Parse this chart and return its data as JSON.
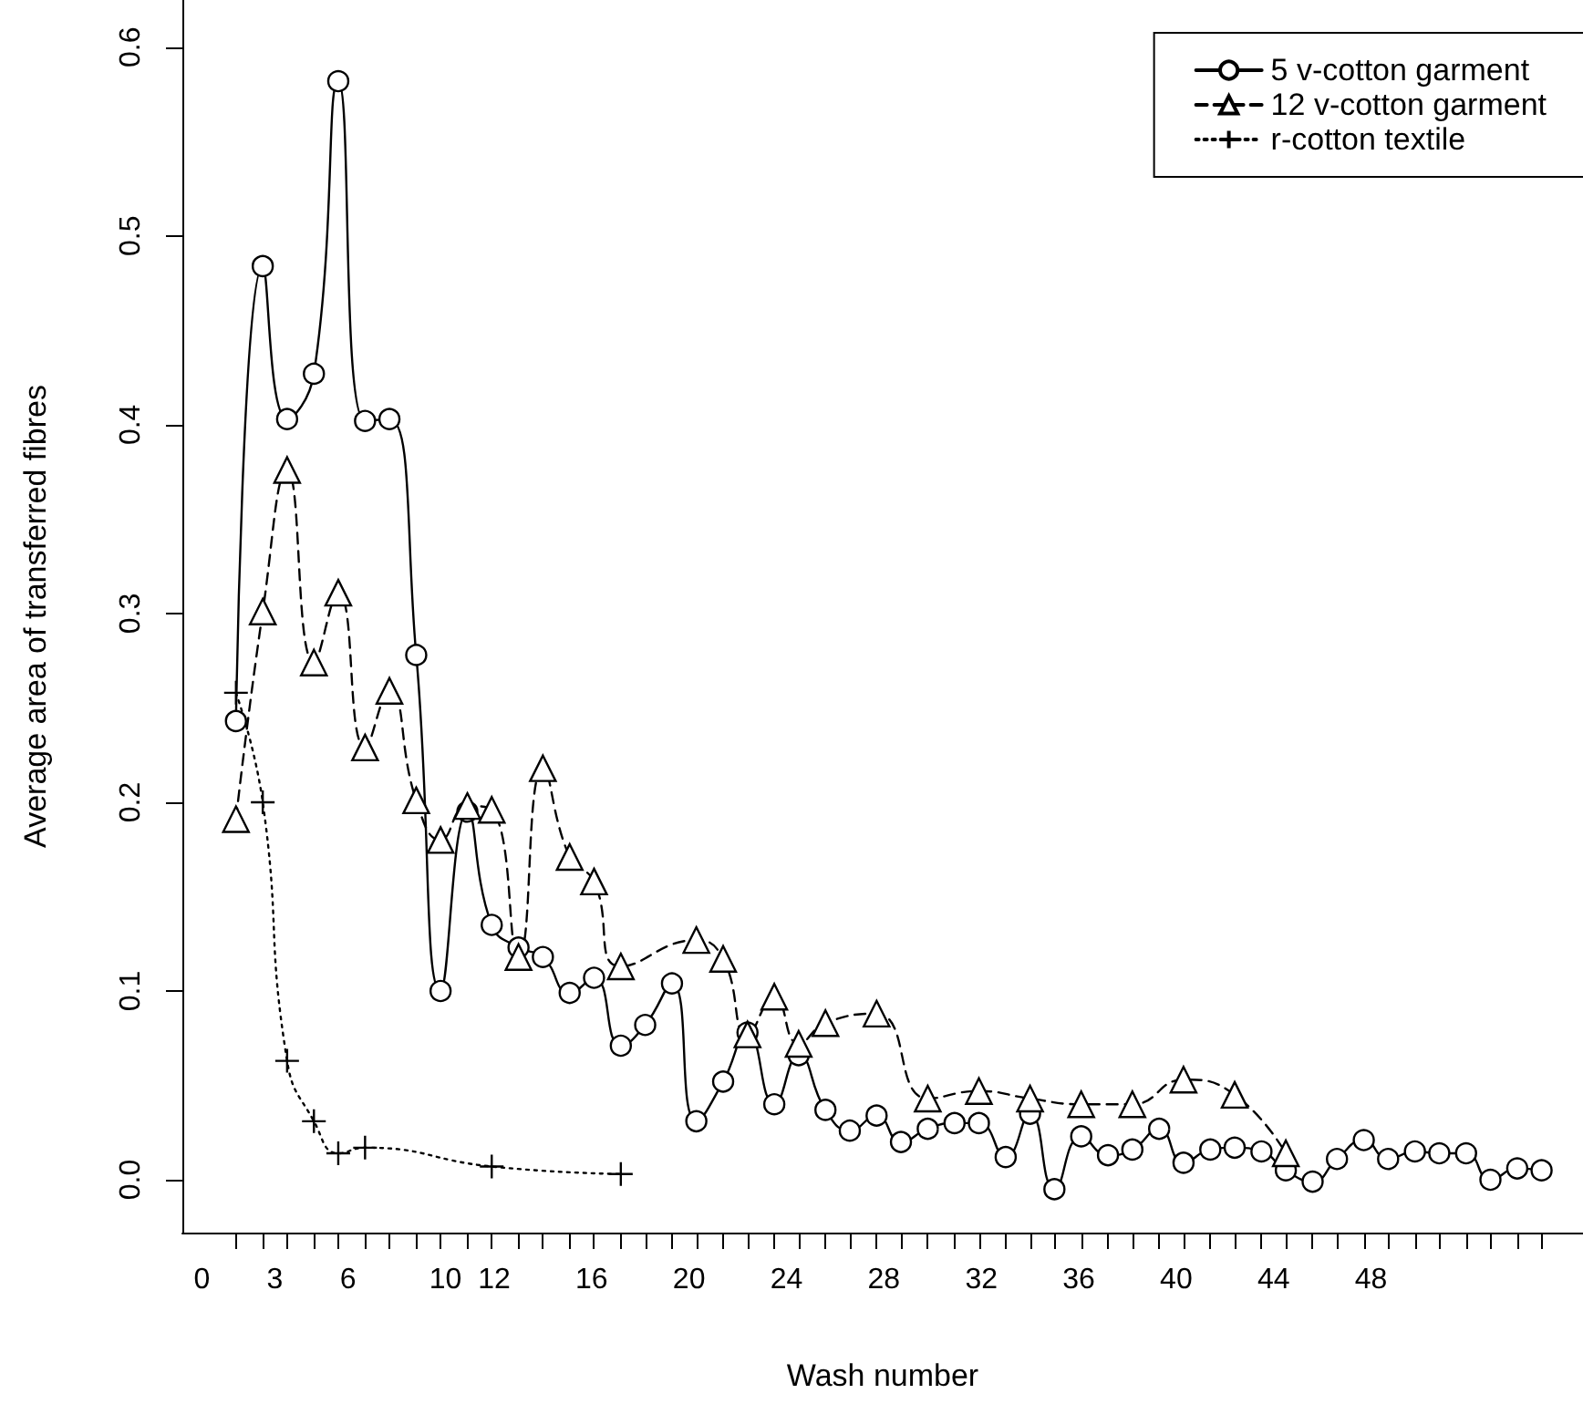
{
  "chart_data": {
    "type": "line",
    "xlabel": "Wash number",
    "ylabel": "Average area of transferred fibres",
    "xlim": [
      -0.8,
      56.7
    ],
    "ylim": [
      -0.028,
      0.625
    ],
    "xticks": [
      0,
      3,
      6,
      10,
      12,
      16,
      20,
      24,
      28,
      32,
      36,
      40,
      44,
      48,
      {
        "value": 1.4,
        "label": null
      },
      {
        "value": 2.5,
        "label": null
      },
      {
        "value": 3.5,
        "label": null
      },
      {
        "value": 4.6,
        "label": null
      },
      {
        "value": 5.6,
        "label": null
      },
      {
        "value": 6.7,
        "label": null
      },
      {
        "value": 7.7,
        "label": null
      },
      {
        "value": 8.8,
        "label": null
      },
      {
        "value": 9.8,
        "label": null
      },
      {
        "value": 10.9,
        "label": null
      },
      {
        "value": 11.9,
        "label": null
      },
      {
        "value": 13.0,
        "label": null
      },
      {
        "value": 14.0,
        "label": null
      },
      {
        "value": 15.1,
        "label": null
      },
      {
        "value": 16.1,
        "label": null
      },
      {
        "value": 17.2,
        "label": null
      },
      {
        "value": 18.2,
        "label": null
      },
      {
        "value": 19.3,
        "label": null
      },
      {
        "value": 20.3,
        "label": null
      },
      {
        "value": 21.4,
        "label": null
      },
      {
        "value": 22.4,
        "label": null
      },
      {
        "value": 23.5,
        "label": null
      },
      {
        "value": 24.5,
        "label": null
      },
      {
        "value": 25.6,
        "label": null
      },
      {
        "value": 26.6,
        "label": null
      },
      {
        "value": 27.7,
        "label": null
      },
      {
        "value": 28.7,
        "label": null
      },
      {
        "value": 29.8,
        "label": null
      },
      {
        "value": 30.9,
        "label": null
      },
      {
        "value": 31.9,
        "label": null
      },
      {
        "value": 33.0,
        "label": null
      },
      {
        "value": 34.0,
        "label": null
      },
      {
        "value": 35.0,
        "label": null
      },
      {
        "value": 36.1,
        "label": null
      },
      {
        "value": 37.2,
        "label": null
      },
      {
        "value": 38.2,
        "label": null
      },
      {
        "value": 39.3,
        "label": null
      },
      {
        "value": 40.3,
        "label": null
      },
      {
        "value": 41.4,
        "label": null
      },
      {
        "value": 42.4,
        "label": null
      },
      {
        "value": 43.5,
        "label": null
      },
      {
        "value": 44.5,
        "label": null
      },
      {
        "value": 45.6,
        "label": null
      },
      {
        "value": 46.6,
        "label": null
      },
      {
        "value": 47.7,
        "label": null
      },
      {
        "value": 48.7,
        "label": null
      },
      {
        "value": 49.8,
        "label": null
      },
      {
        "value": 50.8,
        "label": null
      },
      {
        "value": 51.9,
        "label": null
      },
      {
        "value": 52.9,
        "label": null
      },
      {
        "value": 54.0,
        "label": null
      },
      {
        "value": 55.0,
        "label": null
      }
    ],
    "yticks": [
      {
        "value": 0,
        "label": "0.0"
      },
      {
        "value": 0.1,
        "label": "0.1"
      },
      {
        "value": 0.2,
        "label": "0.2"
      },
      {
        "value": 0.3,
        "label": "0.3"
      },
      {
        "value": 0.4,
        "label": "0.4"
      },
      {
        "value": 0.5,
        "label": "0.5"
      },
      {
        "value": 0.6,
        "label": "0.6"
      }
    ],
    "grid": false,
    "legend": "top right",
    "series": [
      {
        "name": "5 v-cotton garment",
        "color": "#000000",
        "marker": "circle",
        "line_style": "solid",
        "x": [
          1.4,
          2.5,
          3.5,
          4.6,
          5.6,
          6.7,
          7.7,
          8.8,
          9.8,
          10.9,
          11.9,
          13.0,
          14.0,
          15.1,
          16.1,
          17.2,
          18.2,
          19.3,
          20.3,
          21.4,
          22.4,
          23.5,
          24.5,
          25.6,
          26.6,
          27.7,
          28.7,
          29.8,
          30.9,
          31.9,
          33.0,
          34.0,
          35.0,
          36.1,
          37.2,
          38.2,
          39.3,
          40.3,
          41.4,
          42.4,
          43.5,
          44.5,
          45.6,
          46.6,
          47.7,
          48.7,
          49.8,
          50.8,
          51.9,
          52.9,
          54.0,
          55.0
        ],
        "values": [
          0.243,
          0.484,
          0.403,
          0.427,
          0.582,
          0.402,
          0.403,
          0.278,
          0.1,
          0.195,
          0.135,
          0.123,
          0.118,
          0.099,
          0.107,
          0.071,
          0.082,
          0.104,
          0.031,
          0.052,
          0.078,
          0.04,
          0.066,
          0.037,
          0.026,
          0.034,
          0.02,
          0.027,
          0.03,
          0.03,
          0.012,
          0.035,
          -0.005,
          0.023,
          0.013,
          0.016,
          0.027,
          0.009,
          0.016,
          0.017,
          0.015,
          0.005,
          -0.001,
          0.011,
          0.021,
          0.011,
          0.015,
          0.014,
          0.014,
          0.0,
          0.006,
          0.005
        ]
      },
      {
        "name": "12 v-cotton garment",
        "color": "#000000",
        "marker": "triangle",
        "line_style": "dashed",
        "x": [
          1.4,
          2.5,
          3.5,
          4.6,
          5.6,
          6.7,
          7.7,
          8.8,
          9.8,
          10.9,
          11.9,
          13.0,
          14.0,
          15.1,
          16.1,
          17.2,
          20.3,
          21.4,
          22.4,
          23.5,
          24.5,
          25.6,
          27.7,
          29.8,
          31.9,
          34.0,
          36.1,
          38.2,
          40.3,
          42.4,
          44.5
        ],
        "values": [
          0.191,
          0.301,
          0.376,
          0.274,
          0.311,
          0.229,
          0.259,
          0.201,
          0.18,
          0.198,
          0.196,
          0.118,
          0.218,
          0.171,
          0.158,
          0.113,
          0.127,
          0.117,
          0.077,
          0.097,
          0.072,
          0.083,
          0.088,
          0.043,
          0.047,
          0.043,
          0.04,
          0.04,
          0.053,
          0.045,
          0.014
        ]
      },
      {
        "name": "r-cotton textile",
        "color": "#000000",
        "marker": "cross",
        "line_style": "dotted",
        "x": [
          1.4,
          2.5,
          3.5,
          4.6,
          5.6,
          6.7,
          11.9,
          17.2
        ],
        "values": [
          0.258,
          0.2,
          0.063,
          0.031,
          0.014,
          0.017,
          0.007,
          0.003
        ]
      }
    ]
  }
}
